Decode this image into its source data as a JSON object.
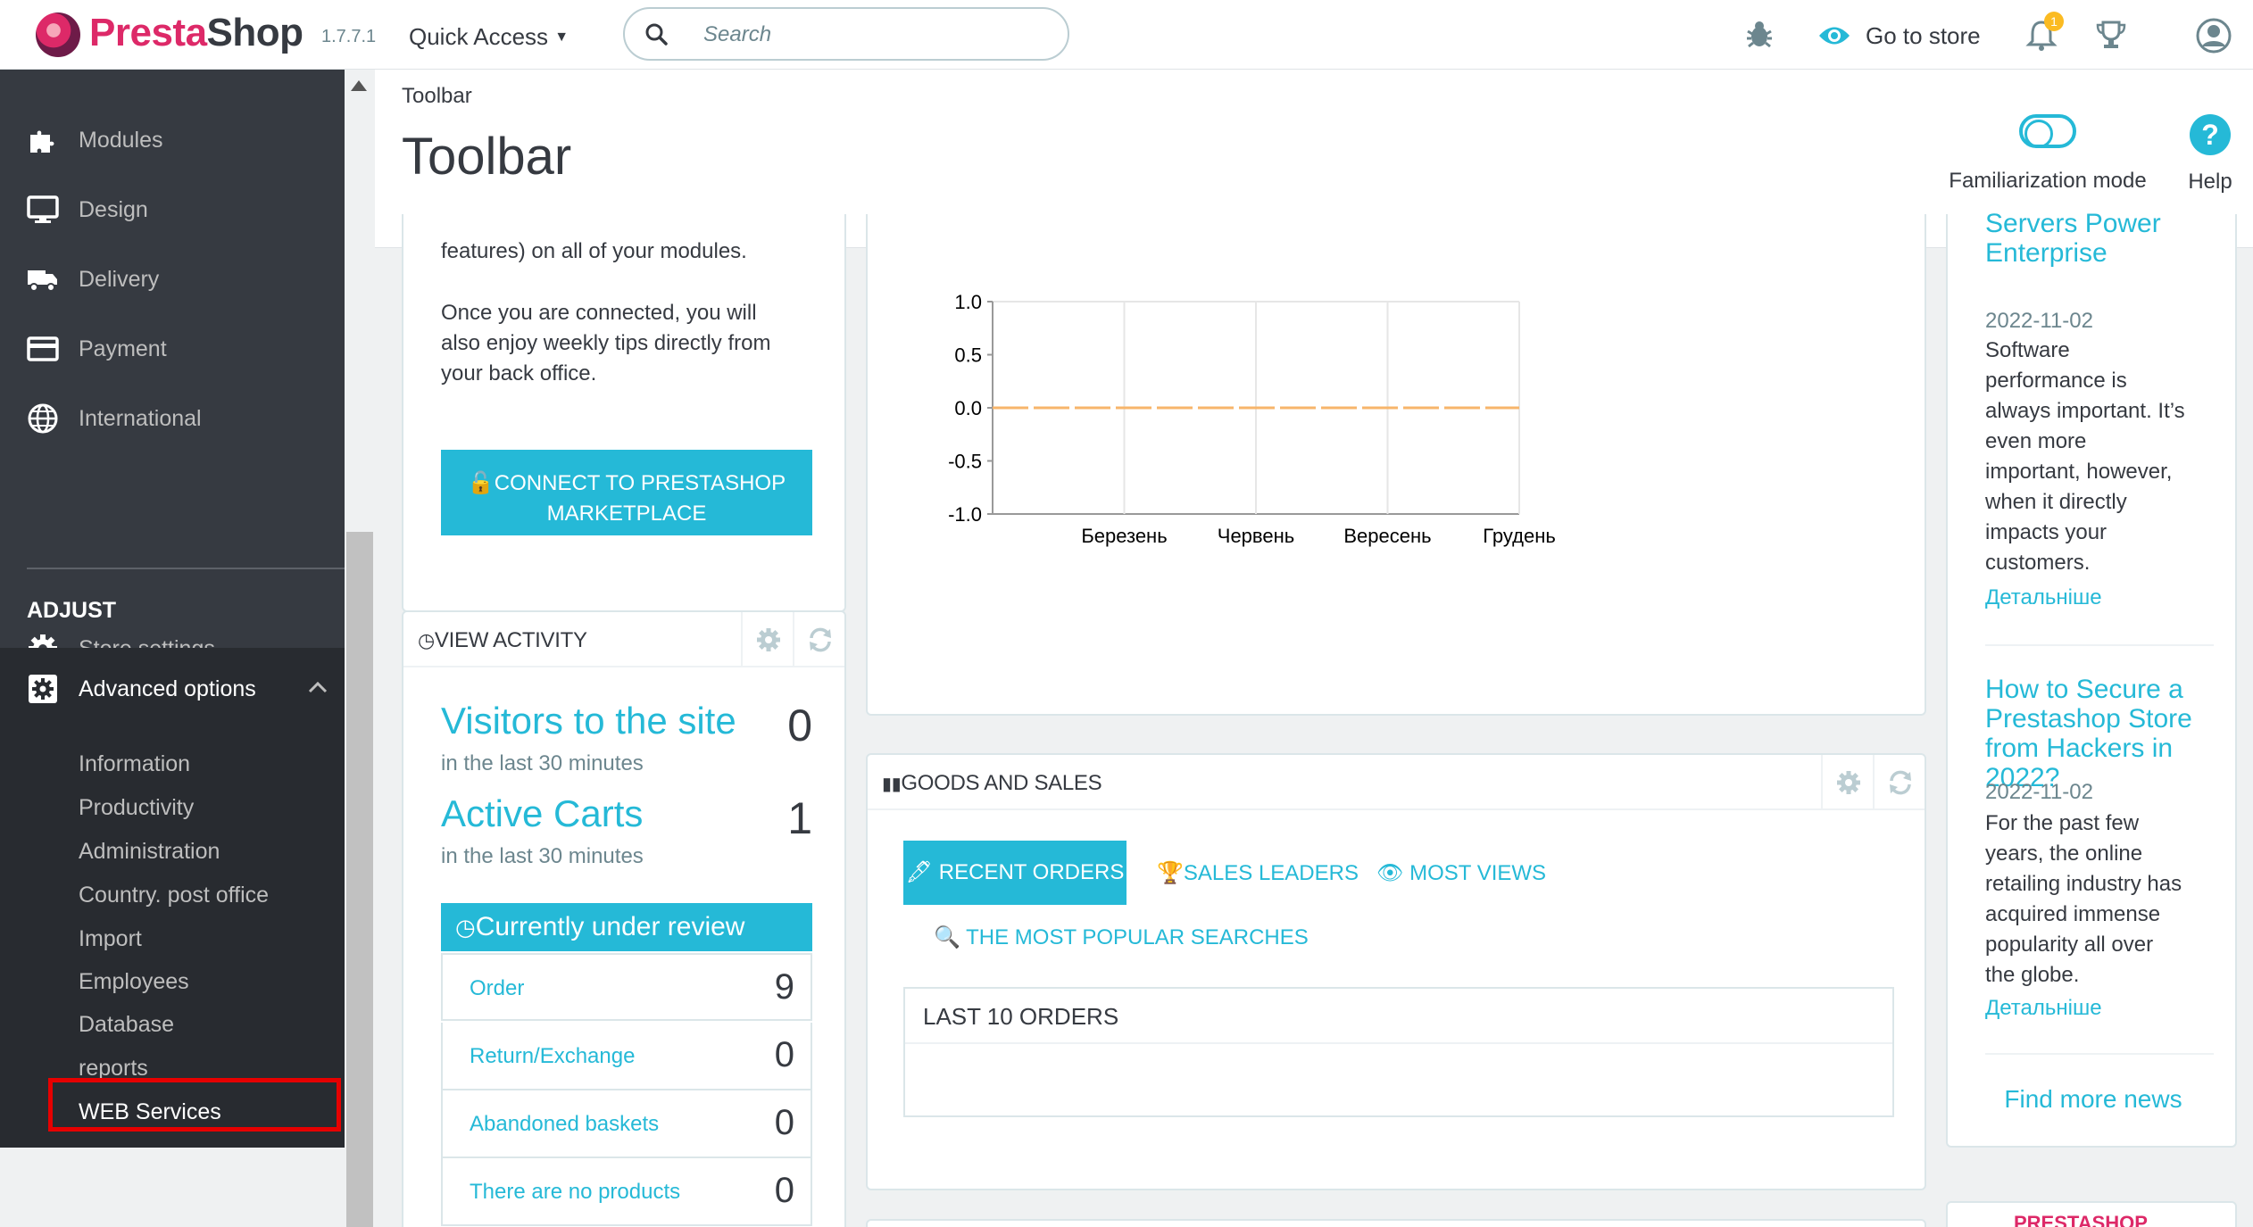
{
  "header": {
    "brand_a": "Presta",
    "brand_b": "Shop",
    "version": "1.7.7.1",
    "quick_access": "Quick Access",
    "search_placeholder": "Search",
    "go_to_store": "Go to store",
    "notification_count": "1"
  },
  "sidebar": {
    "items": [
      {
        "label": "Modules",
        "icon": "puzzle-icon"
      },
      {
        "label": "Design",
        "icon": "monitor-icon"
      },
      {
        "label": "Delivery",
        "icon": "truck-icon"
      },
      {
        "label": "Payment",
        "icon": "credit-card-icon"
      },
      {
        "label": "International",
        "icon": "globe-icon"
      }
    ],
    "section_title": "ADJUST",
    "store_settings": "Store settings",
    "advanced_options": "Advanced options",
    "sub_items": [
      "Information",
      "Productivity",
      "Administration",
      "Country. post office",
      "Import",
      "Employees",
      "Database",
      "reports",
      "WEB Services"
    ]
  },
  "page": {
    "breadcrumb": "Toolbar",
    "title": "Toolbar",
    "familiarization": "Familiarization mode",
    "help": "Help"
  },
  "connect": {
    "text1": "features) on all of your modules.",
    "text2_l1": "Once you are connected, you will",
    "text2_l2": "also enjoy weekly tips directly from",
    "text2_l3": "your back office.",
    "button_l1": "CONNECT TO PRESTASHOP",
    "button_l2": "MARKETPLACE"
  },
  "activity": {
    "title": "VIEW ACTIVITY",
    "visitors_label": "Visitors to the site",
    "visitors_sub": "in the last 30 minutes",
    "visitors_value": "0",
    "carts_label": "Active Carts",
    "carts_sub": "in the last 30 minutes",
    "carts_value": "1",
    "review_title": "Currently under review",
    "review_rows": [
      {
        "name": "Order",
        "count": "9"
      },
      {
        "name": "Return/Exchange",
        "count": "0"
      },
      {
        "name": "Abandoned baskets",
        "count": "0"
      },
      {
        "name": "There are no products",
        "count": "0"
      }
    ]
  },
  "chart_data": {
    "type": "line",
    "categories": [
      "Березень",
      "Червень",
      "Вересень",
      "Грудень"
    ],
    "y_ticks": [
      "1.0",
      "0.5",
      "0.0",
      "-0.5",
      "-1.0"
    ],
    "ylim": [
      -1.0,
      1.0
    ],
    "series": [
      {
        "values": [
          0,
          0,
          0,
          0
        ],
        "color": "#f7b56b",
        "style": "dashed"
      }
    ],
    "grid": true
  },
  "sales": {
    "title": "GOODS AND SALES",
    "tab_recent": "RECENT ORDERS",
    "tab_leaders": "SALES LEADERS",
    "tab_views": "MOST VIEWS",
    "tab_searches": "THE MOST POPULAR SEARCHES",
    "orders_title": "LAST 10 ORDERS"
  },
  "news": {
    "top_title_l1": "Servers Power",
    "top_title_l2": "Enterprise",
    "top_date": "2022-11-02",
    "top_body": [
      "Software",
      "performance is",
      "always important. It’s",
      "even more",
      "important, however,",
      "when it directly",
      "impacts your",
      "customers."
    ],
    "read_more": "Детальніше",
    "second_title": [
      "How to Secure a",
      "Prestashop Store",
      "from Hackers in 2022?"
    ],
    "second_date": "2022-11-02",
    "second_body": [
      "For the past few",
      "years, the online",
      "retailing industry has",
      "acquired immense",
      "popularity all over",
      "the globe."
    ],
    "find_more": "Find more news",
    "bottom_partial": "PRESTASHOP"
  },
  "colors": {
    "accent": "#25b9d7",
    "sidebar": "#363a41",
    "highlight": "#e60000"
  }
}
